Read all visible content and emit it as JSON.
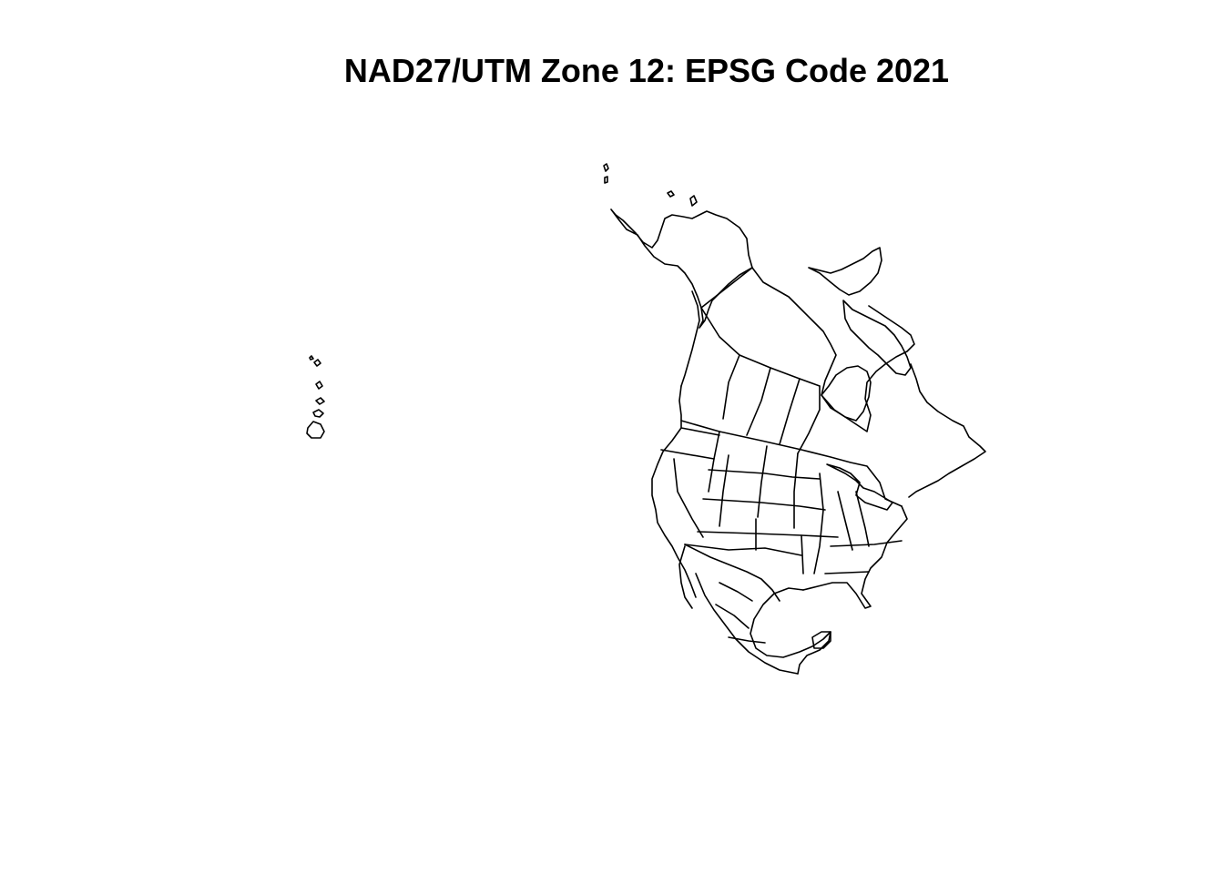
{
  "title": "NAD27/UTM Zone 12: EPSG Code 2021",
  "map": {
    "projection": "NAD27/UTM Zone 12",
    "epsg_code": 2021,
    "region": "North America",
    "line_color": "#000000",
    "background_color": "#ffffff",
    "regions_drawn": [
      "Canada",
      "United States",
      "Mexico",
      "Alaska",
      "Hawaii",
      "Greenland coast"
    ]
  }
}
